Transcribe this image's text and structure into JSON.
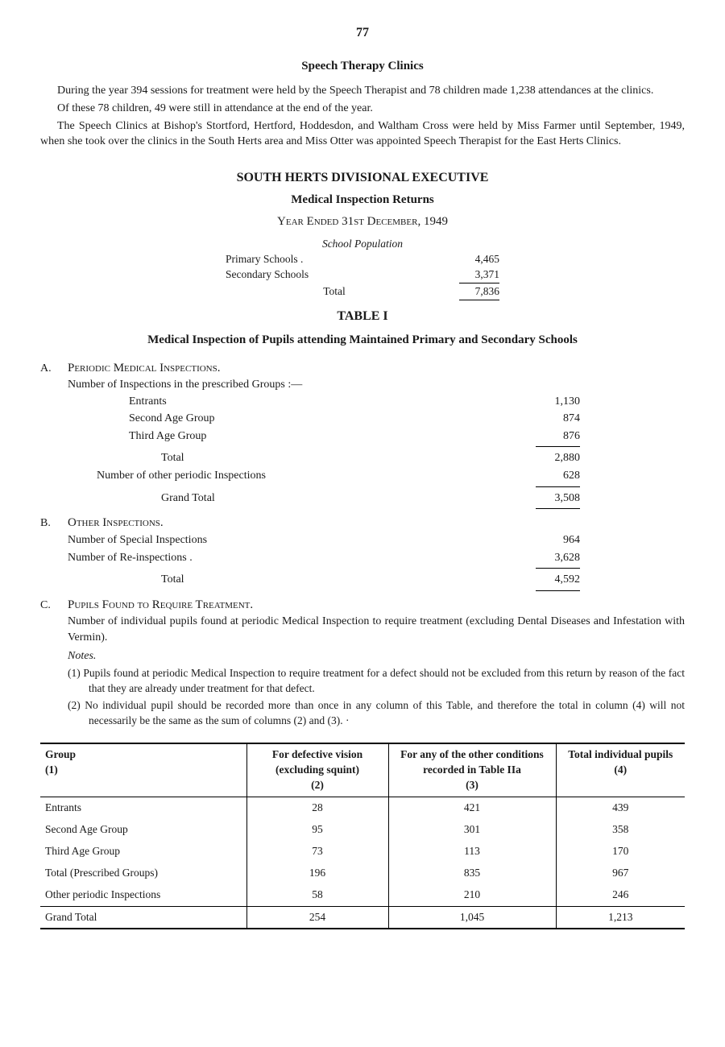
{
  "page_number": "77",
  "speech_section": {
    "title": "Speech Therapy Clinics",
    "p1": "During the year 394 sessions for treatment were held by the Speech Therapist and 78 children made 1,238 attendances at the clinics.",
    "p2": "Of these 78 children, 49 were still in attendance at the end of the year.",
    "p3": "The Speech Clinics at Bishop's Stortford, Hertford, Hoddesdon, and Waltham Cross were held by Miss Farmer until September, 1949, when she took over the clinics in the South Herts area and Miss Otter was appointed Speech Therapist for the East Herts Clinics."
  },
  "exec": {
    "main": "SOUTH HERTS DIVISIONAL EXECUTIVE",
    "sub": "Medical Inspection Returns",
    "year": "Year Ended 31st December, 1949",
    "pop_label": "School Population",
    "rows": [
      {
        "label": "Primary Schools .",
        "val": "4,465"
      },
      {
        "label": "Secondary Schools",
        "val": "3,371"
      }
    ],
    "total_label": "Total",
    "total_val": "7,836"
  },
  "table1": {
    "label": "TABLE I",
    "title": "Medical Inspection of Pupils attending Maintained Primary and Secondary Schools"
  },
  "sectionA": {
    "letter": "A.",
    "heading": "Periodic Medical Inspections.",
    "intro": "Number of Inspections in the prescribed Groups :—",
    "rows": [
      {
        "label": "Entrants",
        "val": "1,130"
      },
      {
        "label": "Second Age Group",
        "val": "874"
      },
      {
        "label": "Third Age Group",
        "val": "876"
      }
    ],
    "total_label": "Total",
    "total_val": "2,880",
    "other_label": "Number of other periodic Inspections",
    "other_val": "628",
    "grand_label": "Grand Total",
    "grand_val": "3,508"
  },
  "sectionB": {
    "letter": "B.",
    "heading": "Other Inspections.",
    "rows": [
      {
        "label": "Number of Special Inspections",
        "val": "964"
      },
      {
        "label": "Number of Re-inspections .",
        "val": "3,628"
      }
    ],
    "total_label": "Total",
    "total_val": "4,592"
  },
  "sectionC": {
    "letter": "C.",
    "heading": "Pupils Found to Require Treatment.",
    "intro": "Number of individual pupils found at periodic Medical Inspection to require treatment (excluding Dental Diseases and Infestation with Vermin).",
    "notes_label": "Notes.",
    "note1": "(1) Pupils found at periodic Medical Inspection to require treatment for a defect should not be excluded from this return by reason of the fact that they are already under treatment for that defect.",
    "note2": "(2) No individual pupil should be recorded more than once in any column of this Table, and therefore the total in column (4) will not necessarily be the same as the sum of columns (2) and (3). ·"
  },
  "datatable": {
    "columns": [
      {
        "head": "Group",
        "sub": "(1)",
        "align": "left"
      },
      {
        "head": "For defective vision (excluding squint)",
        "sub": "(2)",
        "align": "center"
      },
      {
        "head": "For any of the other conditions recorded in Table IIa",
        "sub": "(3)",
        "align": "center"
      },
      {
        "head": "Total individual pupils",
        "sub": "(4)",
        "align": "center"
      }
    ],
    "rows": [
      {
        "c1": "Entrants",
        "c2": "28",
        "c3": "421",
        "c4": "439"
      },
      {
        "c1": "Second Age Group",
        "c2": "95",
        "c3": "301",
        "c4": "358"
      },
      {
        "c1": "Third Age Group",
        "c2": "73",
        "c3": "113",
        "c4": "170"
      },
      {
        "c1": "Total (Prescribed Groups)",
        "c2": "196",
        "c3": "835",
        "c4": "967"
      },
      {
        "c1": "Other periodic Inspections",
        "c2": "58",
        "c3": "210",
        "c4": "246"
      }
    ],
    "footer": {
      "c1": "Grand Total",
      "c2": "254",
      "c3": "1,045",
      "c4": "1,213"
    }
  }
}
